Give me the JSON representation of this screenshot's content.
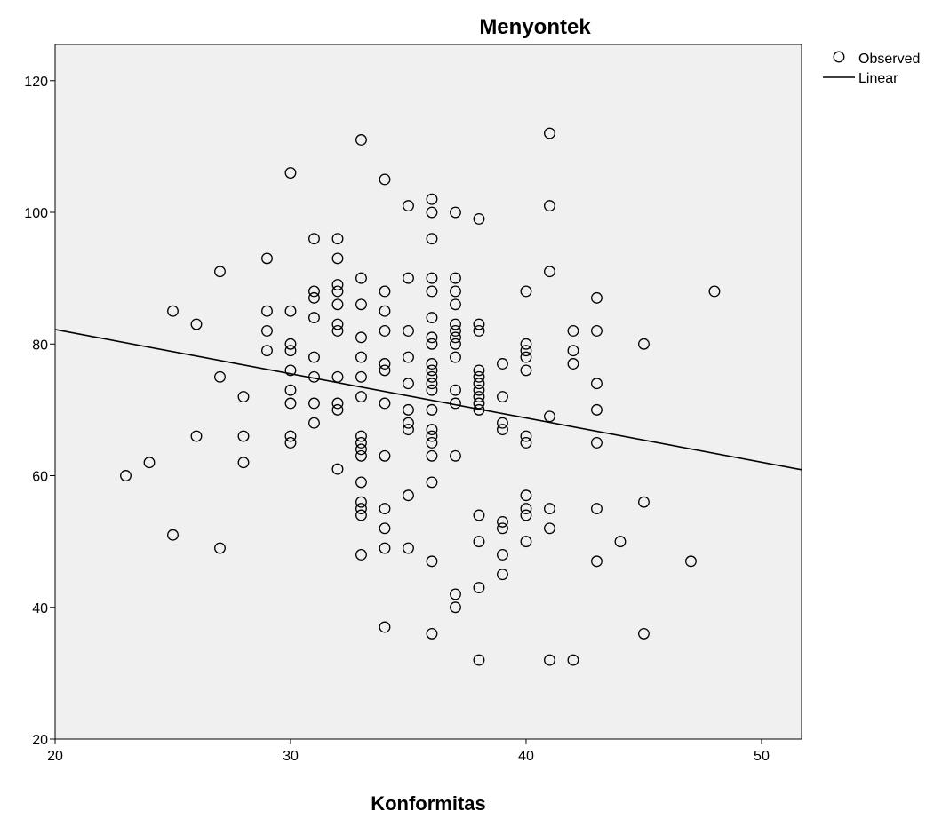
{
  "chart_data": {
    "type": "scatter",
    "title": "Menyontek",
    "xlabel": "Konformitas",
    "ylabel": "",
    "xlim": [
      20,
      51.7
    ],
    "ylim": [
      20,
      125.5
    ],
    "xticks": [
      20,
      30,
      40,
      50
    ],
    "yticks": [
      20,
      40,
      60,
      80,
      100,
      120
    ],
    "grid": false,
    "legend_position": "top-right",
    "series": [
      {
        "name": "Observed",
        "marker": "open-circle",
        "points": [
          [
            23,
            60
          ],
          [
            24,
            62
          ],
          [
            25,
            85
          ],
          [
            25,
            51
          ],
          [
            26,
            83
          ],
          [
            26,
            66
          ],
          [
            27,
            91
          ],
          [
            27,
            75
          ],
          [
            27,
            49
          ],
          [
            28,
            72
          ],
          [
            28,
            66
          ],
          [
            28,
            62
          ],
          [
            29,
            93
          ],
          [
            29,
            85
          ],
          [
            29,
            82
          ],
          [
            29,
            79
          ],
          [
            30,
            106
          ],
          [
            30,
            85
          ],
          [
            30,
            80
          ],
          [
            30,
            79
          ],
          [
            30,
            76
          ],
          [
            30,
            73
          ],
          [
            30,
            71
          ],
          [
            30,
            66
          ],
          [
            30,
            65
          ],
          [
            31,
            96
          ],
          [
            31,
            88
          ],
          [
            31,
            87
          ],
          [
            31,
            84
          ],
          [
            31,
            78
          ],
          [
            31,
            75
          ],
          [
            31,
            71
          ],
          [
            31,
            68
          ],
          [
            32,
            96
          ],
          [
            32,
            93
          ],
          [
            32,
            89
          ],
          [
            32,
            88
          ],
          [
            32,
            86
          ],
          [
            32,
            83
          ],
          [
            32,
            82
          ],
          [
            32,
            75
          ],
          [
            32,
            71
          ],
          [
            32,
            70
          ],
          [
            32,
            61
          ],
          [
            33,
            111
          ],
          [
            33,
            90
          ],
          [
            33,
            86
          ],
          [
            33,
            81
          ],
          [
            33,
            78
          ],
          [
            33,
            75
          ],
          [
            33,
            72
          ],
          [
            33,
            66
          ],
          [
            33,
            65
          ],
          [
            33,
            64
          ],
          [
            33,
            63
          ],
          [
            33,
            59
          ],
          [
            33,
            56
          ],
          [
            33,
            55
          ],
          [
            33,
            54
          ],
          [
            33,
            48
          ],
          [
            34,
            105
          ],
          [
            34,
            88
          ],
          [
            34,
            85
          ],
          [
            34,
            82
          ],
          [
            34,
            77
          ],
          [
            34,
            76
          ],
          [
            34,
            71
          ],
          [
            34,
            63
          ],
          [
            34,
            55
          ],
          [
            34,
            52
          ],
          [
            34,
            49
          ],
          [
            34,
            37
          ],
          [
            35,
            101
          ],
          [
            35,
            90
          ],
          [
            35,
            82
          ],
          [
            35,
            78
          ],
          [
            35,
            74
          ],
          [
            35,
            70
          ],
          [
            35,
            68
          ],
          [
            35,
            67
          ],
          [
            35,
            57
          ],
          [
            35,
            49
          ],
          [
            36,
            102
          ],
          [
            36,
            100
          ],
          [
            36,
            96
          ],
          [
            36,
            90
          ],
          [
            36,
            88
          ],
          [
            36,
            84
          ],
          [
            36,
            81
          ],
          [
            36,
            80
          ],
          [
            36,
            77
          ],
          [
            36,
            76
          ],
          [
            36,
            75
          ],
          [
            36,
            74
          ],
          [
            36,
            73
          ],
          [
            36,
            70
          ],
          [
            36,
            67
          ],
          [
            36,
            66
          ],
          [
            36,
            65
          ],
          [
            36,
            63
          ],
          [
            36,
            59
          ],
          [
            36,
            47
          ],
          [
            36,
            36
          ],
          [
            37,
            100
          ],
          [
            37,
            90
          ],
          [
            37,
            88
          ],
          [
            37,
            86
          ],
          [
            37,
            83
          ],
          [
            37,
            82
          ],
          [
            37,
            81
          ],
          [
            37,
            80
          ],
          [
            37,
            78
          ],
          [
            37,
            73
          ],
          [
            37,
            71
          ],
          [
            37,
            63
          ],
          [
            37,
            42
          ],
          [
            37,
            40
          ],
          [
            38,
            99
          ],
          [
            38,
            83
          ],
          [
            38,
            82
          ],
          [
            38,
            76
          ],
          [
            38,
            75
          ],
          [
            38,
            74
          ],
          [
            38,
            73
          ],
          [
            38,
            72
          ],
          [
            38,
            71
          ],
          [
            38,
            70
          ],
          [
            38,
            54
          ],
          [
            38,
            50
          ],
          [
            38,
            43
          ],
          [
            38,
            32
          ],
          [
            39,
            77
          ],
          [
            39,
            72
          ],
          [
            39,
            68
          ],
          [
            39,
            67
          ],
          [
            39,
            53
          ],
          [
            39,
            52
          ],
          [
            39,
            48
          ],
          [
            39,
            45
          ],
          [
            40,
            88
          ],
          [
            40,
            80
          ],
          [
            40,
            79
          ],
          [
            40,
            78
          ],
          [
            40,
            76
          ],
          [
            40,
            66
          ],
          [
            40,
            65
          ],
          [
            40,
            57
          ],
          [
            40,
            55
          ],
          [
            40,
            54
          ],
          [
            40,
            50
          ],
          [
            41,
            112
          ],
          [
            41,
            101
          ],
          [
            41,
            91
          ],
          [
            41,
            69
          ],
          [
            41,
            55
          ],
          [
            41,
            52
          ],
          [
            41,
            32
          ],
          [
            42,
            82
          ],
          [
            42,
            79
          ],
          [
            42,
            77
          ],
          [
            42,
            32
          ],
          [
            43,
            87
          ],
          [
            43,
            82
          ],
          [
            43,
            74
          ],
          [
            43,
            70
          ],
          [
            43,
            65
          ],
          [
            43,
            55
          ],
          [
            43,
            47
          ],
          [
            44,
            50
          ],
          [
            45,
            80
          ],
          [
            45,
            56
          ],
          [
            45,
            36
          ],
          [
            47,
            47
          ],
          [
            48,
            88
          ]
        ]
      },
      {
        "name": "Linear",
        "line": [
          [
            20,
            82.2
          ],
          [
            51.7,
            60.9
          ]
        ]
      }
    ]
  }
}
